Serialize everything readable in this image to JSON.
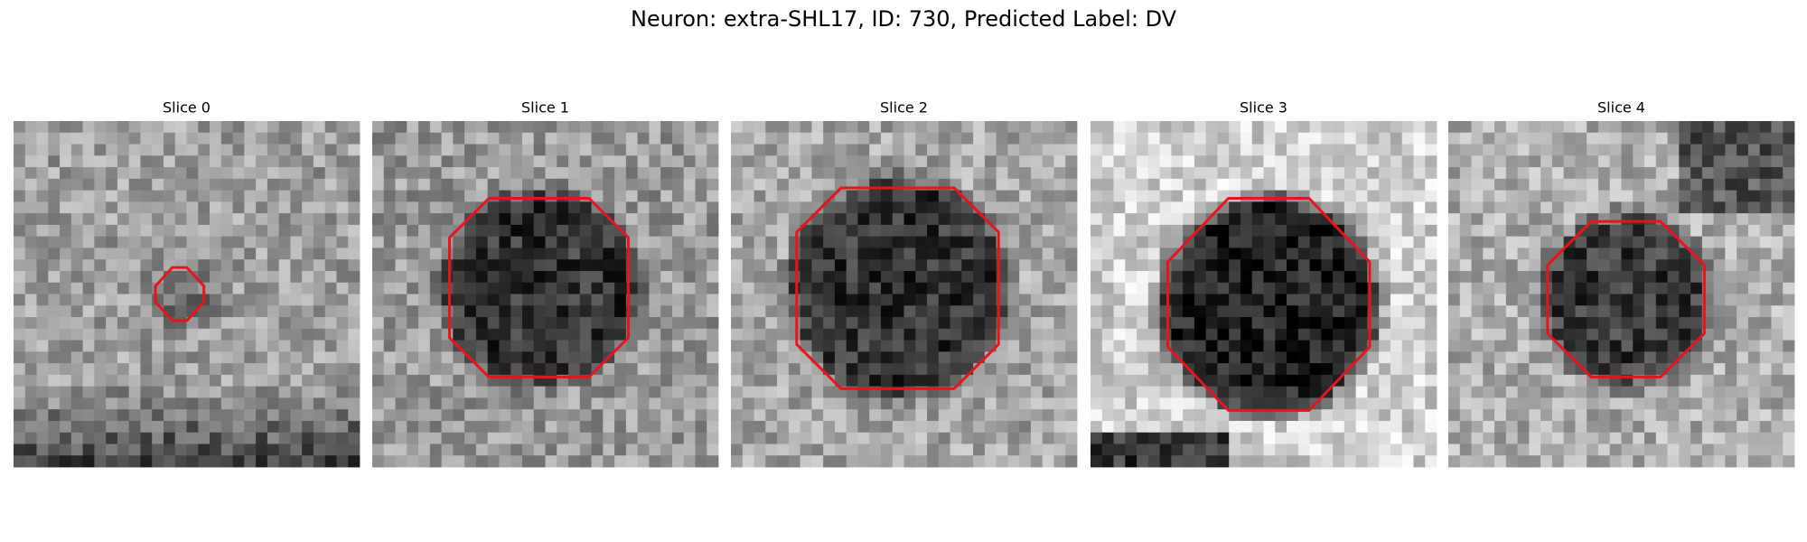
{
  "header": {
    "title": "Neuron: extra-SHL17, ID: 730, Predicted Label: DV"
  },
  "panels": [
    {
      "title": "Slice 0"
    },
    {
      "title": "Slice 1"
    },
    {
      "title": "Slice 2"
    },
    {
      "title": "Slice 3"
    },
    {
      "title": "Slice 4"
    }
  ]
}
